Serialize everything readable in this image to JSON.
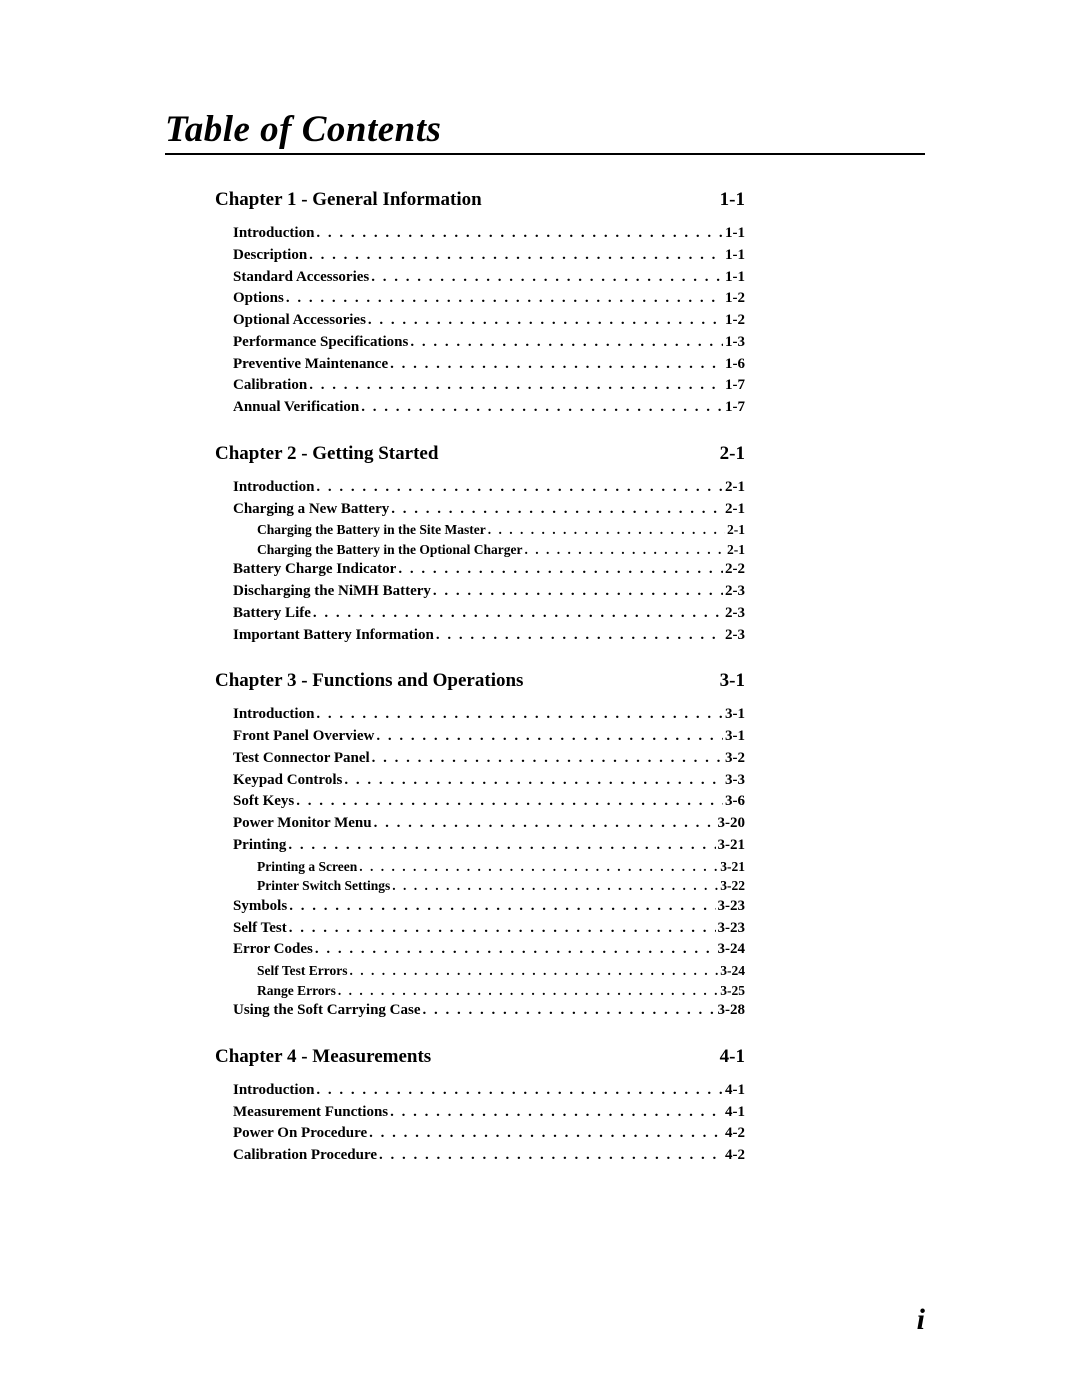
{
  "page": {
    "title": "Table of Contents",
    "page_number": "i",
    "title_fontsize_pt": 28,
    "chapter_fontsize_pt": 14,
    "entry_fontsize_pt": 11,
    "subentry_fontsize_pt": 10,
    "text_color": "#000000",
    "background_color": "#ffffff",
    "rule_color": "#000000"
  },
  "chapters": [
    {
      "title": "Chapter 1 - General Information",
      "page": "1-1",
      "entries": [
        {
          "level": 1,
          "text": "Introduction",
          "page": "1-1"
        },
        {
          "level": 1,
          "text": "Description",
          "page": "1-1"
        },
        {
          "level": 1,
          "text": "Standard Accessories",
          "page": "1-1"
        },
        {
          "level": 1,
          "text": "Options",
          "page": "1-2"
        },
        {
          "level": 1,
          "text": "Optional Accessories",
          "page": "1-2"
        },
        {
          "level": 1,
          "text": "Performance Specifications",
          "page": "1-3"
        },
        {
          "level": 1,
          "text": "Preventive Maintenance",
          "page": "1-6"
        },
        {
          "level": 1,
          "text": "Calibration",
          "page": "1-7"
        },
        {
          "level": 1,
          "text": "Annual Verification",
          "page": "1-7"
        }
      ]
    },
    {
      "title": "Chapter 2 - Getting Started",
      "page": "2-1",
      "entries": [
        {
          "level": 1,
          "text": "Introduction",
          "page": "2-1"
        },
        {
          "level": 1,
          "text": "Charging a New Battery",
          "page": "2-1"
        },
        {
          "level": 2,
          "text": "Charging the Battery in the Site Master",
          "page": "2-1"
        },
        {
          "level": 2,
          "text": "Charging the Battery in the Optional Charger",
          "page": "2-1"
        },
        {
          "level": 1,
          "text": "Battery Charge Indicator",
          "page": "2-2"
        },
        {
          "level": 1,
          "text": "Discharging the NiMH Battery",
          "page": "2-3"
        },
        {
          "level": 1,
          "text": "Battery Life",
          "page": "2-3"
        },
        {
          "level": 1,
          "text": "Important Battery Information",
          "page": "2-3"
        }
      ]
    },
    {
      "title": "Chapter 3 - Functions and Operations",
      "page": "3-1",
      "entries": [
        {
          "level": 1,
          "text": "Introduction",
          "page": "3-1"
        },
        {
          "level": 1,
          "text": "Front Panel Overview",
          "page": "3-1"
        },
        {
          "level": 1,
          "text": "Test Connector Panel",
          "page": "3-2"
        },
        {
          "level": 1,
          "text": "Keypad Controls",
          "page": "3-3"
        },
        {
          "level": 1,
          "text": "Soft Keys",
          "page": "3-6"
        },
        {
          "level": 1,
          "text": "Power Monitor Menu",
          "page": "3-20"
        },
        {
          "level": 1,
          "text": "Printing",
          "page": "3-21"
        },
        {
          "level": 2,
          "text": "Printing a Screen",
          "page": "3-21"
        },
        {
          "level": 2,
          "text": "Printer Switch Settings",
          "page": "3-22"
        },
        {
          "level": 1,
          "text": "Symbols",
          "page": "3-23"
        },
        {
          "level": 1,
          "text": "Self Test",
          "page": "3-23"
        },
        {
          "level": 1,
          "text": "Error Codes",
          "page": "3-24"
        },
        {
          "level": 2,
          "text": "Self Test Errors",
          "page": "3-24"
        },
        {
          "level": 2,
          "text": "Range Errors",
          "page": "3-25"
        },
        {
          "level": 1,
          "text": "Using the Soft Carrying Case",
          "page": "3-28"
        }
      ]
    },
    {
      "title": "Chapter 4 - Measurements",
      "page": "4-1",
      "entries": [
        {
          "level": 1,
          "text": "Introduction",
          "page": "4-1"
        },
        {
          "level": 1,
          "text": "Measurement Functions",
          "page": "4-1"
        },
        {
          "level": 1,
          "text": "Power On Procedure",
          "page": "4-2"
        },
        {
          "level": 1,
          "text": "Calibration Procedure",
          "page": "4-2"
        }
      ]
    }
  ]
}
